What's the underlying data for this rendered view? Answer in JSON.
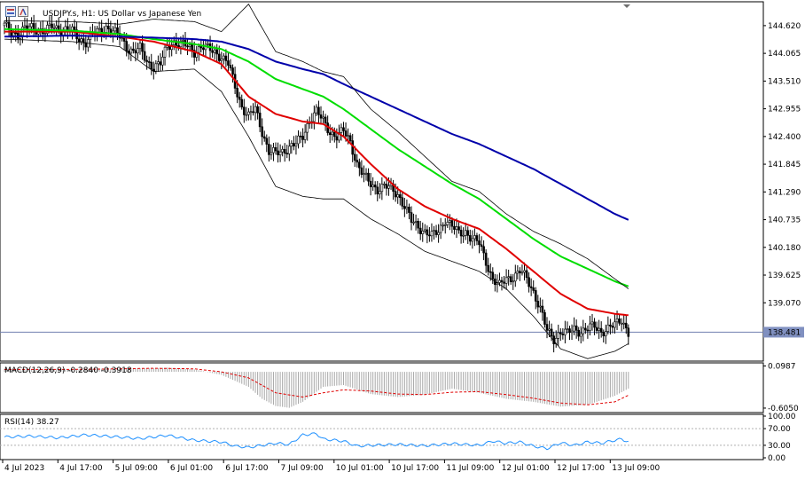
{
  "chart_data": [
    {
      "type": "line",
      "panel": "main",
      "title": "USDJPY.s, H1:  US Dollar vs Japanese Yen",
      "price_axis_ticks": [
        "144.620",
        "144.065",
        "143.510",
        "142.955",
        "142.400",
        "141.845",
        "141.290",
        "140.735",
        "140.180",
        "139.625",
        "139.070",
        "138.481"
      ],
      "current_price": "138.481",
      "current_price_value": 138.481,
      "ylim": [
        137.92,
        145.08
      ],
      "x_labels": [
        "4 Jul 2023",
        "4 Jul 17:00",
        "5 Jul 09:00",
        "6 Jul 01:00",
        "6 Jul 17:00",
        "7 Jul 09:00",
        "10 Jul 01:00",
        "10 Jul 17:00",
        "11 Jul 09:00",
        "12 Jul 01:00",
        "12 Jul 17:00",
        "13 Jul 09:00"
      ],
      "candle_close_path": [
        [
          0,
          144.62
        ],
        [
          3,
          144.5
        ],
        [
          6,
          144.45
        ],
        [
          9,
          144.55
        ],
        [
          12,
          144.58
        ],
        [
          15,
          144.55
        ],
        [
          18,
          144.5
        ],
        [
          21,
          144.6
        ],
        [
          24,
          144.55
        ],
        [
          27,
          144.55
        ],
        [
          30,
          144.5
        ],
        [
          33,
          144.35
        ],
        [
          36,
          144.3
        ],
        [
          39,
          144.45
        ],
        [
          42,
          144.5
        ],
        [
          45,
          144.6
        ],
        [
          48,
          144.5
        ],
        [
          51,
          144.4
        ],
        [
          54,
          144.2
        ],
        [
          57,
          144.1
        ],
        [
          60,
          144.15
        ],
        [
          63,
          143.9
        ],
        [
          66,
          143.8
        ],
        [
          69,
          143.85
        ],
        [
          72,
          144.2
        ],
        [
          75,
          144.3
        ],
        [
          78,
          144.25
        ],
        [
          81,
          144.2
        ],
        [
          84,
          144.1
        ],
        [
          87,
          144.2
        ],
        [
          90,
          144.15
        ],
        [
          93,
          144.1
        ],
        [
          96,
          144.0
        ],
        [
          99,
          143.85
        ],
        [
          102,
          143.4
        ],
        [
          105,
          143.0
        ],
        [
          108,
          142.8
        ],
        [
          111,
          142.95
        ],
        [
          114,
          142.5
        ],
        [
          117,
          142.1
        ],
        [
          120,
          142.05
        ],
        [
          123,
          142.1
        ],
        [
          126,
          142.2
        ],
        [
          129,
          142.25
        ],
        [
          132,
          142.4
        ],
        [
          135,
          142.75
        ],
        [
          138,
          142.9
        ],
        [
          141,
          142.7
        ],
        [
          144,
          142.5
        ],
        [
          147,
          142.4
        ],
        [
          150,
          142.5
        ],
        [
          153,
          142.3
        ],
        [
          156,
          141.85
        ],
        [
          159,
          141.6
        ],
        [
          162,
          141.45
        ],
        [
          165,
          141.35
        ],
        [
          168,
          141.4
        ],
        [
          171,
          141.35
        ],
        [
          174,
          141.25
        ],
        [
          177,
          141.0
        ],
        [
          180,
          140.7
        ],
        [
          183,
          140.6
        ],
        [
          186,
          140.5
        ],
        [
          189,
          140.4
        ],
        [
          192,
          140.5
        ],
        [
          195,
          140.75
        ],
        [
          198,
          140.6
        ],
        [
          201,
          140.45
        ],
        [
          204,
          140.5
        ],
        [
          207,
          140.35
        ],
        [
          210,
          140.25
        ],
        [
          213,
          139.9
        ],
        [
          216,
          139.55
        ],
        [
          219,
          139.4
        ],
        [
          222,
          139.55
        ],
        [
          225,
          139.6
        ],
        [
          228,
          139.7
        ],
        [
          231,
          139.55
        ],
        [
          234,
          139.3
        ],
        [
          237,
          138.95
        ],
        [
          240,
          138.5
        ],
        [
          243,
          138.35
        ],
        [
          246,
          138.5
        ],
        [
          249,
          138.45
        ],
        [
          252,
          138.55
        ],
        [
          255,
          138.5
        ],
        [
          258,
          138.55
        ],
        [
          261,
          138.6
        ],
        [
          264,
          138.5
        ],
        [
          267,
          138.55
        ],
        [
          270,
          138.62
        ],
        [
          273,
          138.75
        ],
        [
          276,
          138.48
        ]
      ],
      "series": [
        {
          "name": "",
          "color": "#e00000",
          "values": [
            [
              0,
              144.5
            ],
            [
              30,
              144.5
            ],
            [
              51,
              144.4
            ],
            [
              66,
              144.3
            ],
            [
              84,
              144.1
            ],
            [
              96,
              143.85
            ],
            [
              108,
              143.2
            ],
            [
              120,
              142.85
            ],
            [
              132,
              142.7
            ],
            [
              141,
              142.65
            ],
            [
              150,
              142.4
            ],
            [
              162,
              141.85
            ],
            [
              174,
              141.35
            ],
            [
              186,
              141.0
            ],
            [
              198,
              140.75
            ],
            [
              210,
              140.55
            ],
            [
              222,
              140.15
            ],
            [
              234,
              139.7
            ],
            [
              246,
              139.25
            ],
            [
              258,
              138.95
            ],
            [
              270,
              138.85
            ],
            [
              276,
              138.82
            ]
          ]
        },
        {
          "name": "",
          "color": "#00dd00",
          "values": [
            [
              0,
              144.55
            ],
            [
              30,
              144.52
            ],
            [
              51,
              144.45
            ],
            [
              66,
              144.35
            ],
            [
              84,
              144.25
            ],
            [
              96,
              144.15
            ],
            [
              108,
              143.9
            ],
            [
              120,
              143.55
            ],
            [
              132,
              143.35
            ],
            [
              141,
              143.2
            ],
            [
              150,
              142.95
            ],
            [
              162,
              142.55
            ],
            [
              174,
              142.15
            ],
            [
              186,
              141.8
            ],
            [
              198,
              141.45
            ],
            [
              210,
              141.15
            ],
            [
              222,
              140.75
            ],
            [
              234,
              140.35
            ],
            [
              246,
              140.0
            ],
            [
              258,
              139.75
            ],
            [
              270,
              139.5
            ],
            [
              276,
              139.4
            ]
          ]
        },
        {
          "name": "",
          "color": "#0000aa",
          "values": [
            [
              0,
              144.4
            ],
            [
              30,
              144.42
            ],
            [
              51,
              144.4
            ],
            [
              66,
              144.38
            ],
            [
              84,
              144.35
            ],
            [
              96,
              144.3
            ],
            [
              108,
              144.15
            ],
            [
              120,
              143.9
            ],
            [
              132,
              143.75
            ],
            [
              141,
              143.65
            ],
            [
              150,
              143.45
            ],
            [
              162,
              143.2
            ],
            [
              174,
              142.95
            ],
            [
              186,
              142.7
            ],
            [
              198,
              142.45
            ],
            [
              210,
              142.25
            ],
            [
              222,
              142.0
            ],
            [
              234,
              141.75
            ],
            [
              246,
              141.45
            ],
            [
              258,
              141.15
            ],
            [
              270,
              140.85
            ],
            [
              276,
              140.73
            ]
          ]
        },
        {
          "name": "",
          "color": "#000000",
          "values": [
            [
              0,
              144.72
            ],
            [
              30,
              144.7
            ],
            [
              51,
              144.65
            ],
            [
              66,
              144.75
            ],
            [
              84,
              144.7
            ],
            [
              96,
              144.5
            ],
            [
              108,
              145.05
            ],
            [
              120,
              144.1
            ],
            [
              132,
              143.9
            ],
            [
              141,
              143.7
            ],
            [
              150,
              143.6
            ],
            [
              162,
              142.95
            ],
            [
              174,
              142.5
            ],
            [
              186,
              142.0
            ],
            [
              198,
              141.5
            ],
            [
              210,
              141.3
            ],
            [
              222,
              140.85
            ],
            [
              234,
              140.5
            ],
            [
              246,
              140.25
            ],
            [
              258,
              139.95
            ],
            [
              270,
              139.55
            ],
            [
              276,
              139.35
            ]
          ]
        },
        {
          "name": "",
          "color": "#000000",
          "values": [
            [
              0,
              144.35
            ],
            [
              30,
              144.3
            ],
            [
              51,
              144.2
            ],
            [
              66,
              143.7
            ],
            [
              84,
              143.75
            ],
            [
              96,
              143.3
            ],
            [
              108,
              142.4
            ],
            [
              120,
              141.4
            ],
            [
              132,
              141.2
            ],
            [
              141,
              141.15
            ],
            [
              150,
              141.15
            ],
            [
              162,
              140.75
            ],
            [
              174,
              140.45
            ],
            [
              186,
              140.1
            ],
            [
              198,
              139.9
            ],
            [
              210,
              139.7
            ],
            [
              222,
              139.35
            ],
            [
              234,
              138.8
            ],
            [
              246,
              138.15
            ],
            [
              258,
              137.95
            ],
            [
              270,
              138.1
            ],
            [
              276,
              138.25
            ]
          ]
        }
      ]
    },
    {
      "type": "bar",
      "panel": "macd",
      "title": "MACD(12,26,9) -0.2840 -0.3918",
      "axis_ticks": [
        "0.0987",
        "-0.6050"
      ],
      "ylim": [
        -0.65,
        0.12
      ],
      "histogram": [
        [
          0,
          0.05
        ],
        [
          30,
          0.04
        ],
        [
          51,
          0.06
        ],
        [
          66,
          0.06
        ],
        [
          72,
          0.07
        ],
        [
          84,
          0.04
        ],
        [
          96,
          -0.05
        ],
        [
          108,
          -0.25
        ],
        [
          114,
          -0.45
        ],
        [
          120,
          -0.57
        ],
        [
          126,
          -0.6
        ],
        [
          132,
          -0.5
        ],
        [
          141,
          -0.25
        ],
        [
          150,
          -0.22
        ],
        [
          162,
          -0.37
        ],
        [
          174,
          -0.42
        ],
        [
          186,
          -0.38
        ],
        [
          198,
          -0.28
        ],
        [
          210,
          -0.35
        ],
        [
          222,
          -0.45
        ],
        [
          234,
          -0.5
        ],
        [
          246,
          -0.58
        ],
        [
          258,
          -0.55
        ],
        [
          270,
          -0.4
        ],
        [
          276,
          -0.28
        ]
      ],
      "signal": [
        [
          0,
          0.04
        ],
        [
          30,
          0.04
        ],
        [
          51,
          0.05
        ],
        [
          66,
          0.06
        ],
        [
          84,
          0.05
        ],
        [
          96,
          0.0
        ],
        [
          108,
          -0.1
        ],
        [
          120,
          -0.35
        ],
        [
          132,
          -0.42
        ],
        [
          141,
          -0.35
        ],
        [
          150,
          -0.3
        ],
        [
          162,
          -0.32
        ],
        [
          174,
          -0.37
        ],
        [
          186,
          -0.38
        ],
        [
          198,
          -0.34
        ],
        [
          210,
          -0.33
        ],
        [
          222,
          -0.38
        ],
        [
          234,
          -0.44
        ],
        [
          246,
          -0.52
        ],
        [
          258,
          -0.55
        ],
        [
          270,
          -0.5
        ],
        [
          276,
          -0.39
        ]
      ]
    },
    {
      "type": "line",
      "panel": "rsi",
      "title": "RSI(14) 38.27",
      "axis_ticks": [
        "100.00",
        "70.00",
        "30.00",
        "0.00"
      ],
      "levels": [
        70,
        30
      ],
      "ylim": [
        0,
        100
      ],
      "values": [
        [
          0,
          50
        ],
        [
          12,
          52
        ],
        [
          24,
          48
        ],
        [
          36,
          55
        ],
        [
          48,
          51
        ],
        [
          60,
          46
        ],
        [
          72,
          54
        ],
        [
          84,
          42
        ],
        [
          96,
          38
        ],
        [
          102,
          28
        ],
        [
          108,
          25
        ],
        [
          114,
          30
        ],
        [
          120,
          35
        ],
        [
          126,
          32
        ],
        [
          132,
          55
        ],
        [
          138,
          58
        ],
        [
          141,
          45
        ],
        [
          150,
          40
        ],
        [
          156,
          28
        ],
        [
          162,
          30
        ],
        [
          174,
          32
        ],
        [
          186,
          29
        ],
        [
          198,
          34
        ],
        [
          210,
          30
        ],
        [
          216,
          40
        ],
        [
          222,
          35
        ],
        [
          228,
          38
        ],
        [
          234,
          28
        ],
        [
          240,
          22
        ],
        [
          246,
          36
        ],
        [
          252,
          30
        ],
        [
          258,
          38
        ],
        [
          264,
          35
        ],
        [
          270,
          42
        ],
        [
          273,
          45
        ],
        [
          276,
          38
        ]
      ]
    }
  ]
}
